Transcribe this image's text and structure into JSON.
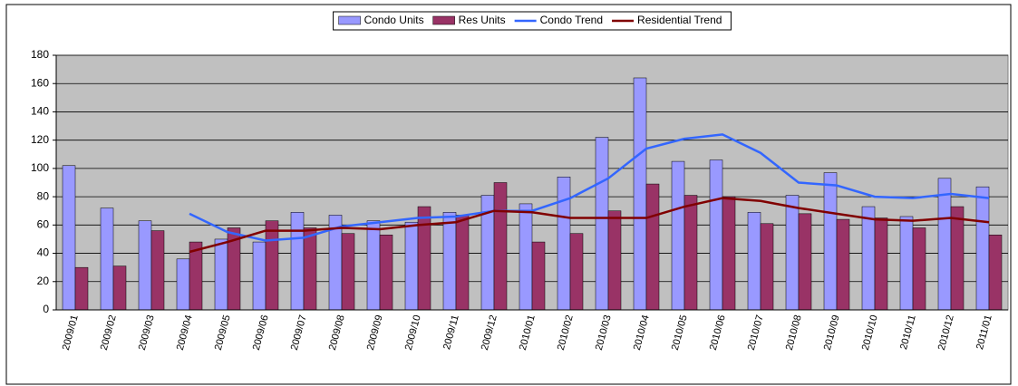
{
  "chart_data": {
    "type": "bar",
    "categories": [
      "2009/01",
      "2009/02",
      "2009/03",
      "2009/04",
      "2009/05",
      "2009/06",
      "2009/07",
      "2009/08",
      "2009/09",
      "2009/10",
      "2009/11",
      "2009/12",
      "2010/01",
      "2010/02",
      "2010/03",
      "2010/04",
      "2010/05",
      "2010/06",
      "2010/07",
      "2010/08",
      "2010/09",
      "2010/10",
      "2010/11",
      "2010/12",
      "2011/01"
    ],
    "series": [
      {
        "name": "Condo Units",
        "type": "bar",
        "color": "#9999ff",
        "values": [
          102,
          72,
          63,
          36,
          50,
          48,
          69,
          67,
          63,
          62,
          69,
          81,
          75,
          94,
          122,
          164,
          105,
          106,
          69,
          81,
          97,
          73,
          66,
          93,
          87
        ]
      },
      {
        "name": "Res Units",
        "type": "bar",
        "color": "#993366",
        "values": [
          30,
          31,
          56,
          48,
          58,
          63,
          58,
          54,
          53,
          73,
          67,
          90,
          48,
          54,
          70,
          89,
          81,
          80,
          61,
          68,
          64,
          65,
          58,
          73,
          53
        ]
      },
      {
        "name": "Condo Trend",
        "type": "line",
        "color": "#3366ff",
        "values": [
          null,
          null,
          null,
          68,
          55,
          49,
          51,
          59,
          62,
          65,
          66,
          70,
          70,
          79,
          93,
          114,
          121,
          124,
          111,
          90,
          88,
          80,
          79,
          82,
          79
        ]
      },
      {
        "name": "Residential Trend",
        "type": "line",
        "color": "#800000",
        "values": [
          null,
          null,
          null,
          41,
          48,
          56,
          56,
          58,
          57,
          60,
          62,
          70,
          69,
          65,
          65,
          65,
          73,
          79,
          77,
          72,
          68,
          64,
          63,
          65,
          62
        ]
      }
    ],
    "ylim": [
      0,
      180
    ],
    "yticks": [
      0,
      20,
      40,
      60,
      80,
      100,
      120,
      140,
      160,
      180
    ],
    "grid": true,
    "legend": "top"
  }
}
